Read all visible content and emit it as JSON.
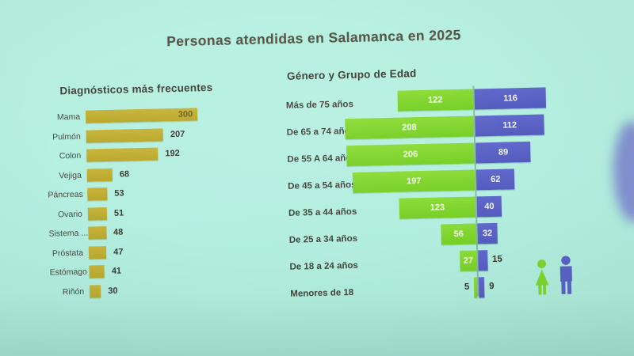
{
  "page": {
    "background": "#b4efe0",
    "accent_gold": "#bfab31",
    "accent_green": "#7fd530",
    "accent_blue": "#5a62c6"
  },
  "title": "Personas atendidas en Salamanca en 2025",
  "chart_data": [
    {
      "type": "bar",
      "orientation": "horizontal",
      "title": "Diagnósticos más frecuentes",
      "categories": [
        "Mama",
        "Pulmón",
        "Colon",
        "Vejiga",
        "Páncreas",
        "Ovario",
        "Sistema ...",
        "Próstata",
        "Estómago",
        "Riñón"
      ],
      "values": [
        300,
        207,
        192,
        68,
        53,
        51,
        48,
        47,
        41,
        30
      ],
      "bar_color": "#bfab31",
      "xlim": [
        0,
        320
      ],
      "value_labels": "shown for every bar; 300 rendered inside the bar, others outside",
      "grid": false,
      "legend": "none"
    },
    {
      "type": "bar",
      "subtype": "population-pyramid",
      "title": "Género y Grupo de Edad",
      "categories": [
        "Más de 75 años",
        "De 65 a 74 años",
        "De 55 A 64 años",
        "De 45 a 54 años",
        "De 35 a 44 años",
        "De 25 a 34 años",
        "De 18 a 24 años",
        "Menores de 18"
      ],
      "series": [
        {
          "name": "mujeres",
          "side": "left",
          "color": "#7fd530",
          "values": [
            122,
            208,
            206,
            197,
            123,
            56,
            27,
            5
          ]
        },
        {
          "name": "hombres",
          "side": "right",
          "color": "#5a62c6",
          "values": [
            116,
            112,
            89,
            62,
            40,
            32,
            15,
            9
          ]
        }
      ],
      "xlim": [
        0,
        215
      ],
      "grid": false,
      "legend_position": "bottom-right person icons (green = mujeres, blue = hombres)",
      "value_labels": "inside bars in white; values under 20 shown outside in dark text"
    }
  ],
  "icons": {
    "female_icon_color": "#7fd530",
    "male_icon_color": "#5a62c6"
  }
}
